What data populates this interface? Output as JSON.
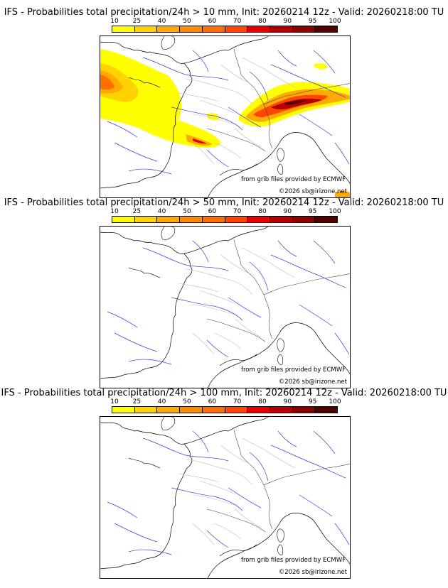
{
  "colorbar": {
    "ticks": [
      "10",
      "25",
      "40",
      "50",
      "60",
      "70",
      "80",
      "90",
      "95",
      "100"
    ],
    "colors": [
      "#ffff00",
      "#ffd200",
      "#ffaa00",
      "#ff8c00",
      "#ff6e00",
      "#ff4600",
      "#e60000",
      "#b40000",
      "#8c0000",
      "#500000"
    ]
  },
  "credits": {
    "source": "from grib files provided by ECMWF",
    "copyright": "©2026 sb@irizone.net"
  },
  "panels": [
    {
      "title": "IFS - Probabilities total precipitation/24h > 10 mm, Init: 20260214 12z - Valid: 20260218:00 TU",
      "threshold_mm": 10
    },
    {
      "title": "IFS - Probabilities total precipitation/24h > 50 mm, Init: 20260214 12z - Valid: 20260218:00 TU",
      "threshold_mm": 50
    },
    {
      "title": "IFS - Probabilities total precipitation/24h > 100 mm, Init: 20260214 12z - Valid: 20260218:00 TU",
      "threshold_mm": 100
    }
  ]
}
